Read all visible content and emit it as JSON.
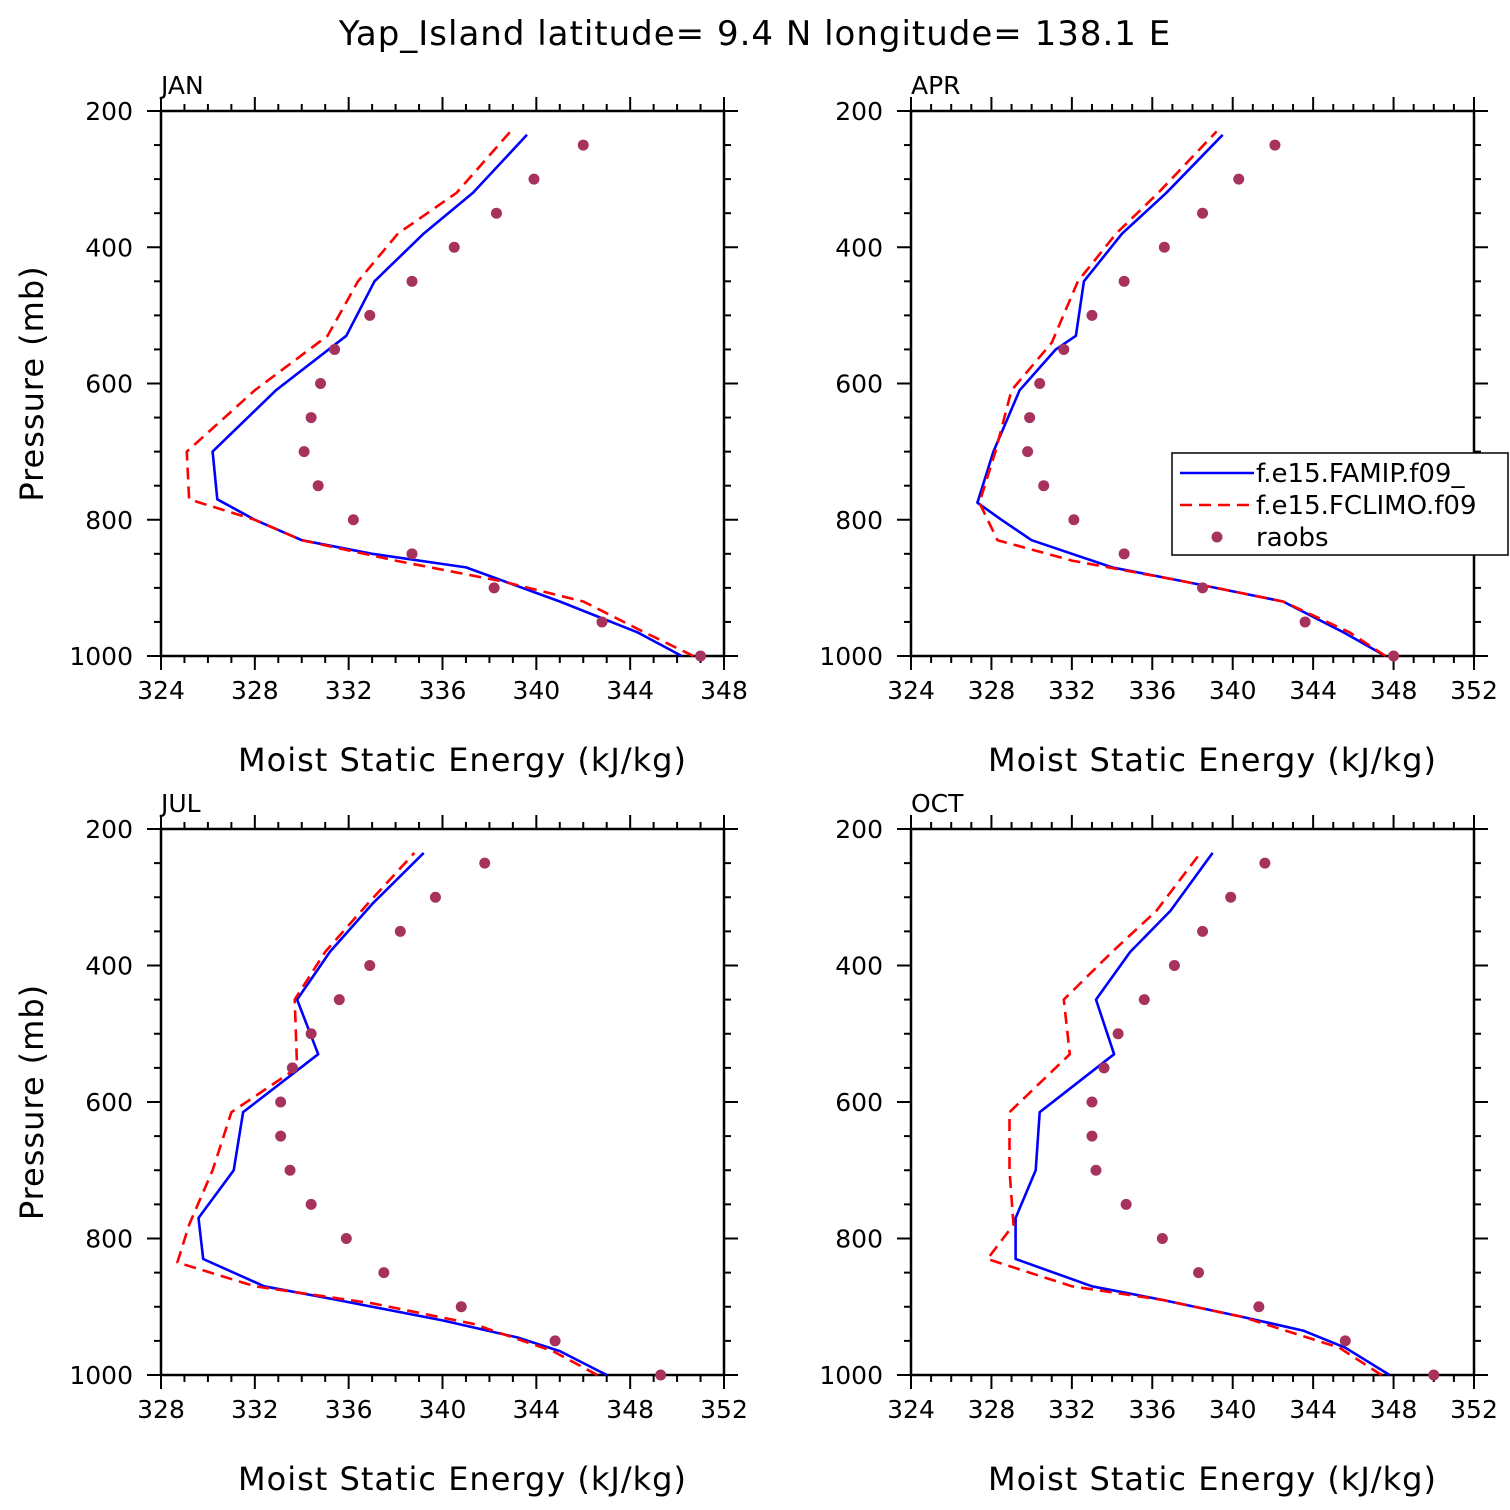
{
  "title": "Yap_Island  latitude= 9.4 N longitude= 138.1 E",
  "colors": {
    "famip": "#0000ff",
    "fclimo": "#ff0000",
    "raobs": "#a8325e"
  },
  "legend": [
    "f.e15.FAMIP.f09_",
    "f.e15.FCLIMO.f09",
    "raobs"
  ],
  "chart_data": [
    {
      "type": "line",
      "panel": "JAN",
      "xlabel": "Moist Static Energy (kJ/kg)",
      "ylabel": "Pressure (mb)",
      "xlim": [
        324,
        348
      ],
      "ylim": [
        1000,
        200
      ],
      "xticks": [
        324,
        328,
        332,
        336,
        340,
        344,
        348
      ],
      "yticks": [
        200,
        400,
        600,
        800,
        1000
      ],
      "legend": false,
      "series": [
        {
          "name": "f.e15.FAMIP.f09_",
          "style": "solid",
          "x": [
            346.2,
            344.3,
            341.0,
            337.0,
            333.0,
            330.0,
            328.0,
            326.4,
            326.2,
            328.9,
            331.9,
            333.1,
            335.2,
            337.3,
            339.6
          ],
          "y": [
            1000,
            965,
            920,
            870,
            850,
            830,
            800,
            770,
            700,
            610,
            530,
            450,
            380,
            320,
            235
          ]
        },
        {
          "name": "f.e15.FCLIMO.f09",
          "style": "dashed",
          "x": [
            346.7,
            344.6,
            342.0,
            338.5,
            334.0,
            330.0,
            328.0,
            325.2,
            325.1,
            328.0,
            331.1,
            332.4,
            334.1,
            336.6,
            338.9
          ],
          "y": [
            1000,
            965,
            920,
            890,
            860,
            830,
            800,
            770,
            700,
            610,
            530,
            450,
            380,
            320,
            230
          ]
        },
        {
          "name": "raobs",
          "style": "markers",
          "x": [
            347.0,
            342.8,
            338.2,
            334.7,
            332.2,
            330.7,
            330.1,
            330.4,
            330.8,
            331.4,
            332.9,
            334.7,
            336.5,
            338.3,
            339.9,
            342.0
          ],
          "y": [
            1000,
            950,
            900,
            850,
            800,
            750,
            700,
            650,
            600,
            550,
            500,
            450,
            400,
            350,
            300,
            250
          ]
        }
      ]
    },
    {
      "type": "line",
      "panel": "APR",
      "xlabel": "Moist Static Energy (kJ/kg)",
      "ylabel": "",
      "xlim": [
        324,
        352
      ],
      "ylim": [
        1000,
        200
      ],
      "xticks": [
        324,
        328,
        332,
        336,
        340,
        344,
        348,
        352
      ],
      "yticks": [
        200,
        400,
        600,
        800,
        1000
      ],
      "legend": true,
      "series": [
        {
          "name": "f.e15.FAMIP.f09_",
          "style": "solid",
          "x": [
            347.6,
            345.5,
            342.5,
            337.5,
            334.0,
            330.0,
            328.5,
            327.3,
            328.1,
            329.4,
            331.2,
            332.2,
            332.6,
            334.5,
            336.7,
            339.5
          ],
          "y": [
            1000,
            965,
            920,
            890,
            870,
            830,
            800,
            775,
            700,
            610,
            550,
            530,
            450,
            380,
            320,
            235
          ]
        },
        {
          "name": "f.e15.FCLIMO.f09",
          "style": "dashed",
          "x": [
            347.6,
            345.8,
            342.5,
            337.5,
            332.0,
            328.3,
            327.4,
            328.2,
            329.0,
            331.0,
            332.3,
            334.2,
            336.3,
            339.2
          ],
          "y": [
            1000,
            965,
            920,
            890,
            860,
            830,
            775,
            700,
            610,
            540,
            450,
            380,
            320,
            230
          ]
        },
        {
          "name": "raobs",
          "style": "markers",
          "x": [
            348.0,
            343.6,
            338.5,
            334.6,
            332.1,
            330.6,
            329.8,
            329.9,
            330.4,
            331.6,
            333.0,
            334.6,
            336.6,
            338.5,
            340.3,
            342.1
          ],
          "y": [
            1000,
            950,
            900,
            850,
            800,
            750,
            700,
            650,
            600,
            550,
            500,
            450,
            400,
            350,
            300,
            250
          ]
        }
      ]
    },
    {
      "type": "line",
      "panel": "JUL",
      "xlabel": "Moist Static Energy (kJ/kg)",
      "ylabel": "Pressure (mb)",
      "xlim": [
        328,
        352
      ],
      "ylim": [
        1000,
        200
      ],
      "xticks": [
        328,
        332,
        336,
        340,
        344,
        348,
        352
      ],
      "yticks": [
        200,
        400,
        600,
        800,
        1000
      ],
      "legend": false,
      "series": [
        {
          "name": "f.e15.FAMIP.f09_",
          "style": "solid",
          "x": [
            347.0,
            345.0,
            343.2,
            340.0,
            335.5,
            332.4,
            329.8,
            329.6,
            331.1,
            331.5,
            334.7,
            333.8,
            335.2,
            337.0,
            339.2
          ],
          "y": [
            1000,
            965,
            945,
            920,
            890,
            870,
            830,
            770,
            700,
            615,
            530,
            450,
            380,
            310,
            235
          ]
        },
        {
          "name": "f.e15.FCLIMO.f09",
          "style": "dashed",
          "x": [
            346.6,
            344.7,
            341.3,
            337.0,
            332.0,
            328.7,
            329.2,
            330.2,
            331.0,
            333.8,
            333.7,
            335.0,
            336.8,
            338.8
          ],
          "y": [
            1000,
            965,
            925,
            895,
            870,
            835,
            780,
            700,
            615,
            550,
            450,
            380,
            310,
            235
          ]
        },
        {
          "name": "raobs",
          "style": "markers",
          "x": [
            349.3,
            344.8,
            340.8,
            337.5,
            335.9,
            334.4,
            333.5,
            333.1,
            333.1,
            333.6,
            334.4,
            335.6,
            336.9,
            338.2,
            339.7,
            341.8
          ],
          "y": [
            1000,
            950,
            900,
            850,
            800,
            750,
            700,
            650,
            600,
            550,
            500,
            450,
            400,
            350,
            300,
            250
          ]
        }
      ]
    },
    {
      "type": "line",
      "panel": "OCT",
      "xlabel": "Moist Static Energy (kJ/kg)",
      "ylabel": "",
      "xlim": [
        324,
        352
      ],
      "ylim": [
        1000,
        200
      ],
      "xticks": [
        324,
        328,
        332,
        336,
        340,
        344,
        348,
        352
      ],
      "yticks": [
        200,
        400,
        600,
        800,
        1000
      ],
      "legend": false,
      "series": [
        {
          "name": "f.e15.FAMIP.f09_",
          "style": "solid",
          "x": [
            347.8,
            345.6,
            343.5,
            340.5,
            336.5,
            333.0,
            329.2,
            329.2,
            330.2,
            330.4,
            334.1,
            333.2,
            334.9,
            336.9,
            339.0
          ],
          "y": [
            1000,
            960,
            935,
            915,
            890,
            870,
            830,
            770,
            700,
            615,
            530,
            450,
            380,
            320,
            235
          ]
        },
        {
          "name": "f.e15.FCLIMO.f09",
          "style": "dashed",
          "x": [
            347.4,
            345.3,
            340.5,
            336.5,
            332.0,
            327.8,
            329.1,
            328.9,
            328.9,
            331.9,
            331.6,
            334.0,
            336.2,
            338.4
          ],
          "y": [
            1000,
            960,
            915,
            890,
            870,
            830,
            780,
            700,
            615,
            530,
            450,
            380,
            320,
            235
          ]
        },
        {
          "name": "raobs",
          "style": "markers",
          "x": [
            350.0,
            345.6,
            341.3,
            338.3,
            336.5,
            334.7,
            333.2,
            333.0,
            333.0,
            333.6,
            334.3,
            335.6,
            337.1,
            338.5,
            339.9,
            341.6
          ],
          "y": [
            1000,
            950,
            900,
            850,
            800,
            750,
            700,
            650,
            600,
            550,
            500,
            450,
            400,
            350,
            300,
            250
          ]
        }
      ]
    }
  ]
}
